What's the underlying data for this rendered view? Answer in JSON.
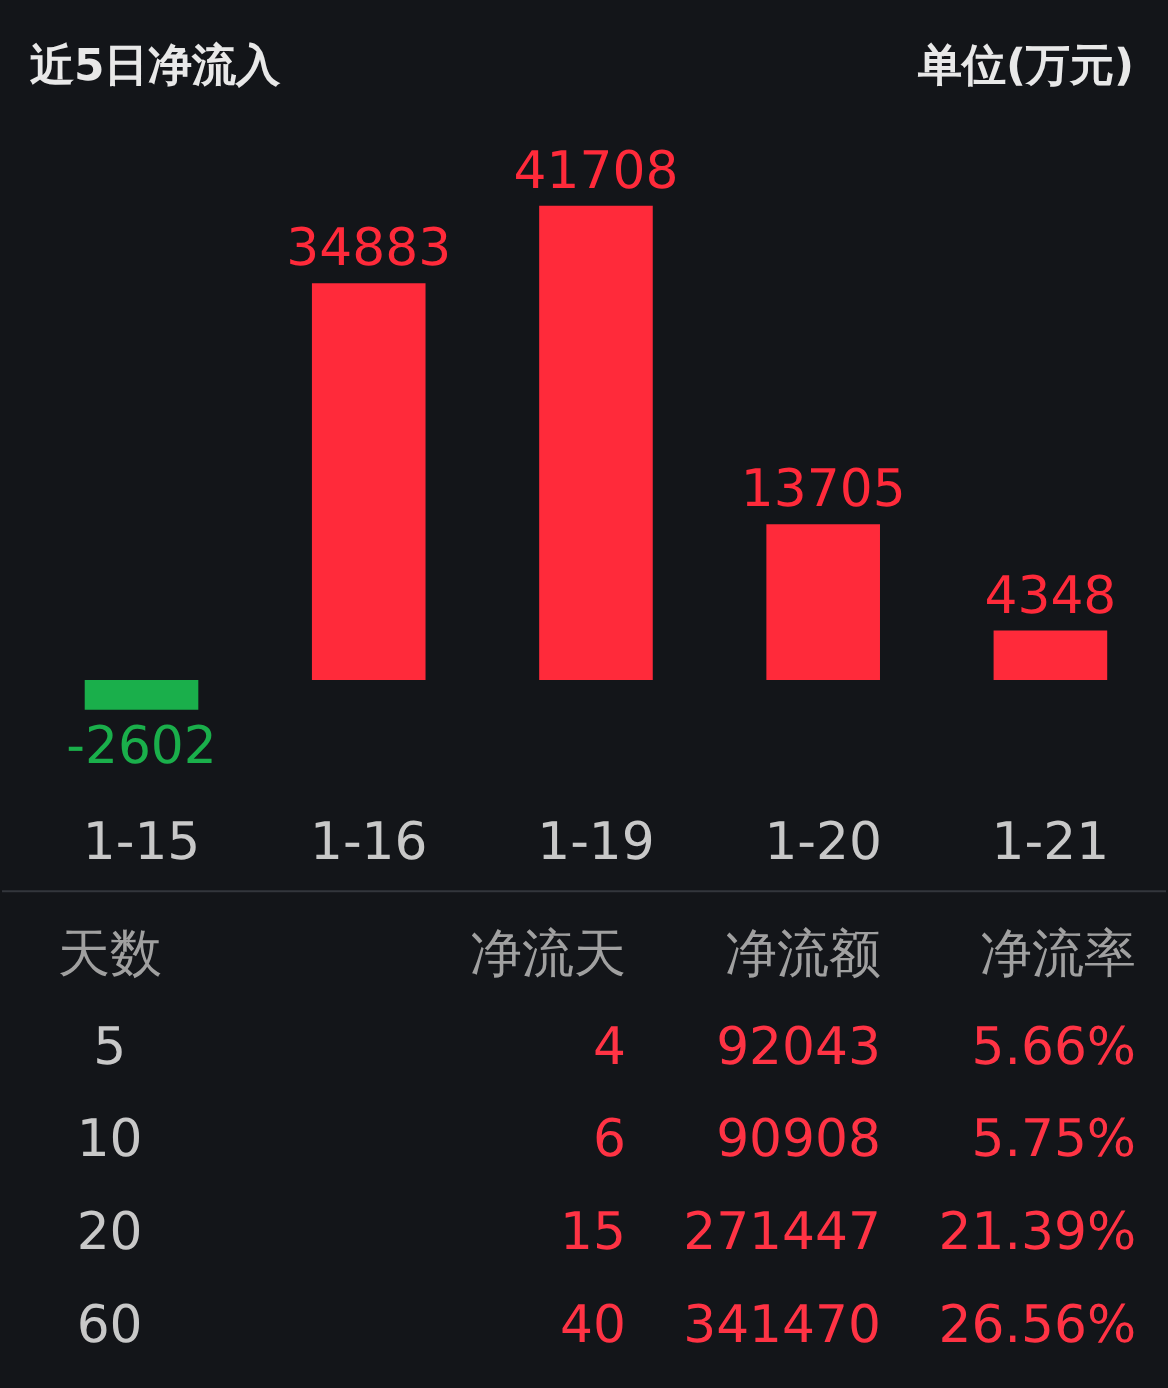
{
  "chart_data": [
    {
      "type": "bar",
      "title": "近5日净流入",
      "subtitle": "单位(万元)",
      "categories": [
        "1-15",
        "1-16",
        "1-19",
        "1-20",
        "1-21"
      ],
      "values": [
        -2602,
        34883,
        41708,
        13705,
        4348
      ],
      "colors": [
        "#1aaf4b",
        "#ff2a3a",
        "#ff2a3a",
        "#ff2a3a",
        "#ff2a3a"
      ],
      "data_labels": true
    },
    {
      "type": "other",
      "annotations": [
        "天数",
        "净流天",
        "净流额",
        "净流率",
        "5",
        "4",
        "92043",
        "5.66%",
        "10",
        "6",
        "90908",
        "5.75%",
        "20",
        "15",
        "271447",
        "21.39%",
        "60",
        "40",
        "341470",
        "26.56%"
      ]
    }
  ]
}
